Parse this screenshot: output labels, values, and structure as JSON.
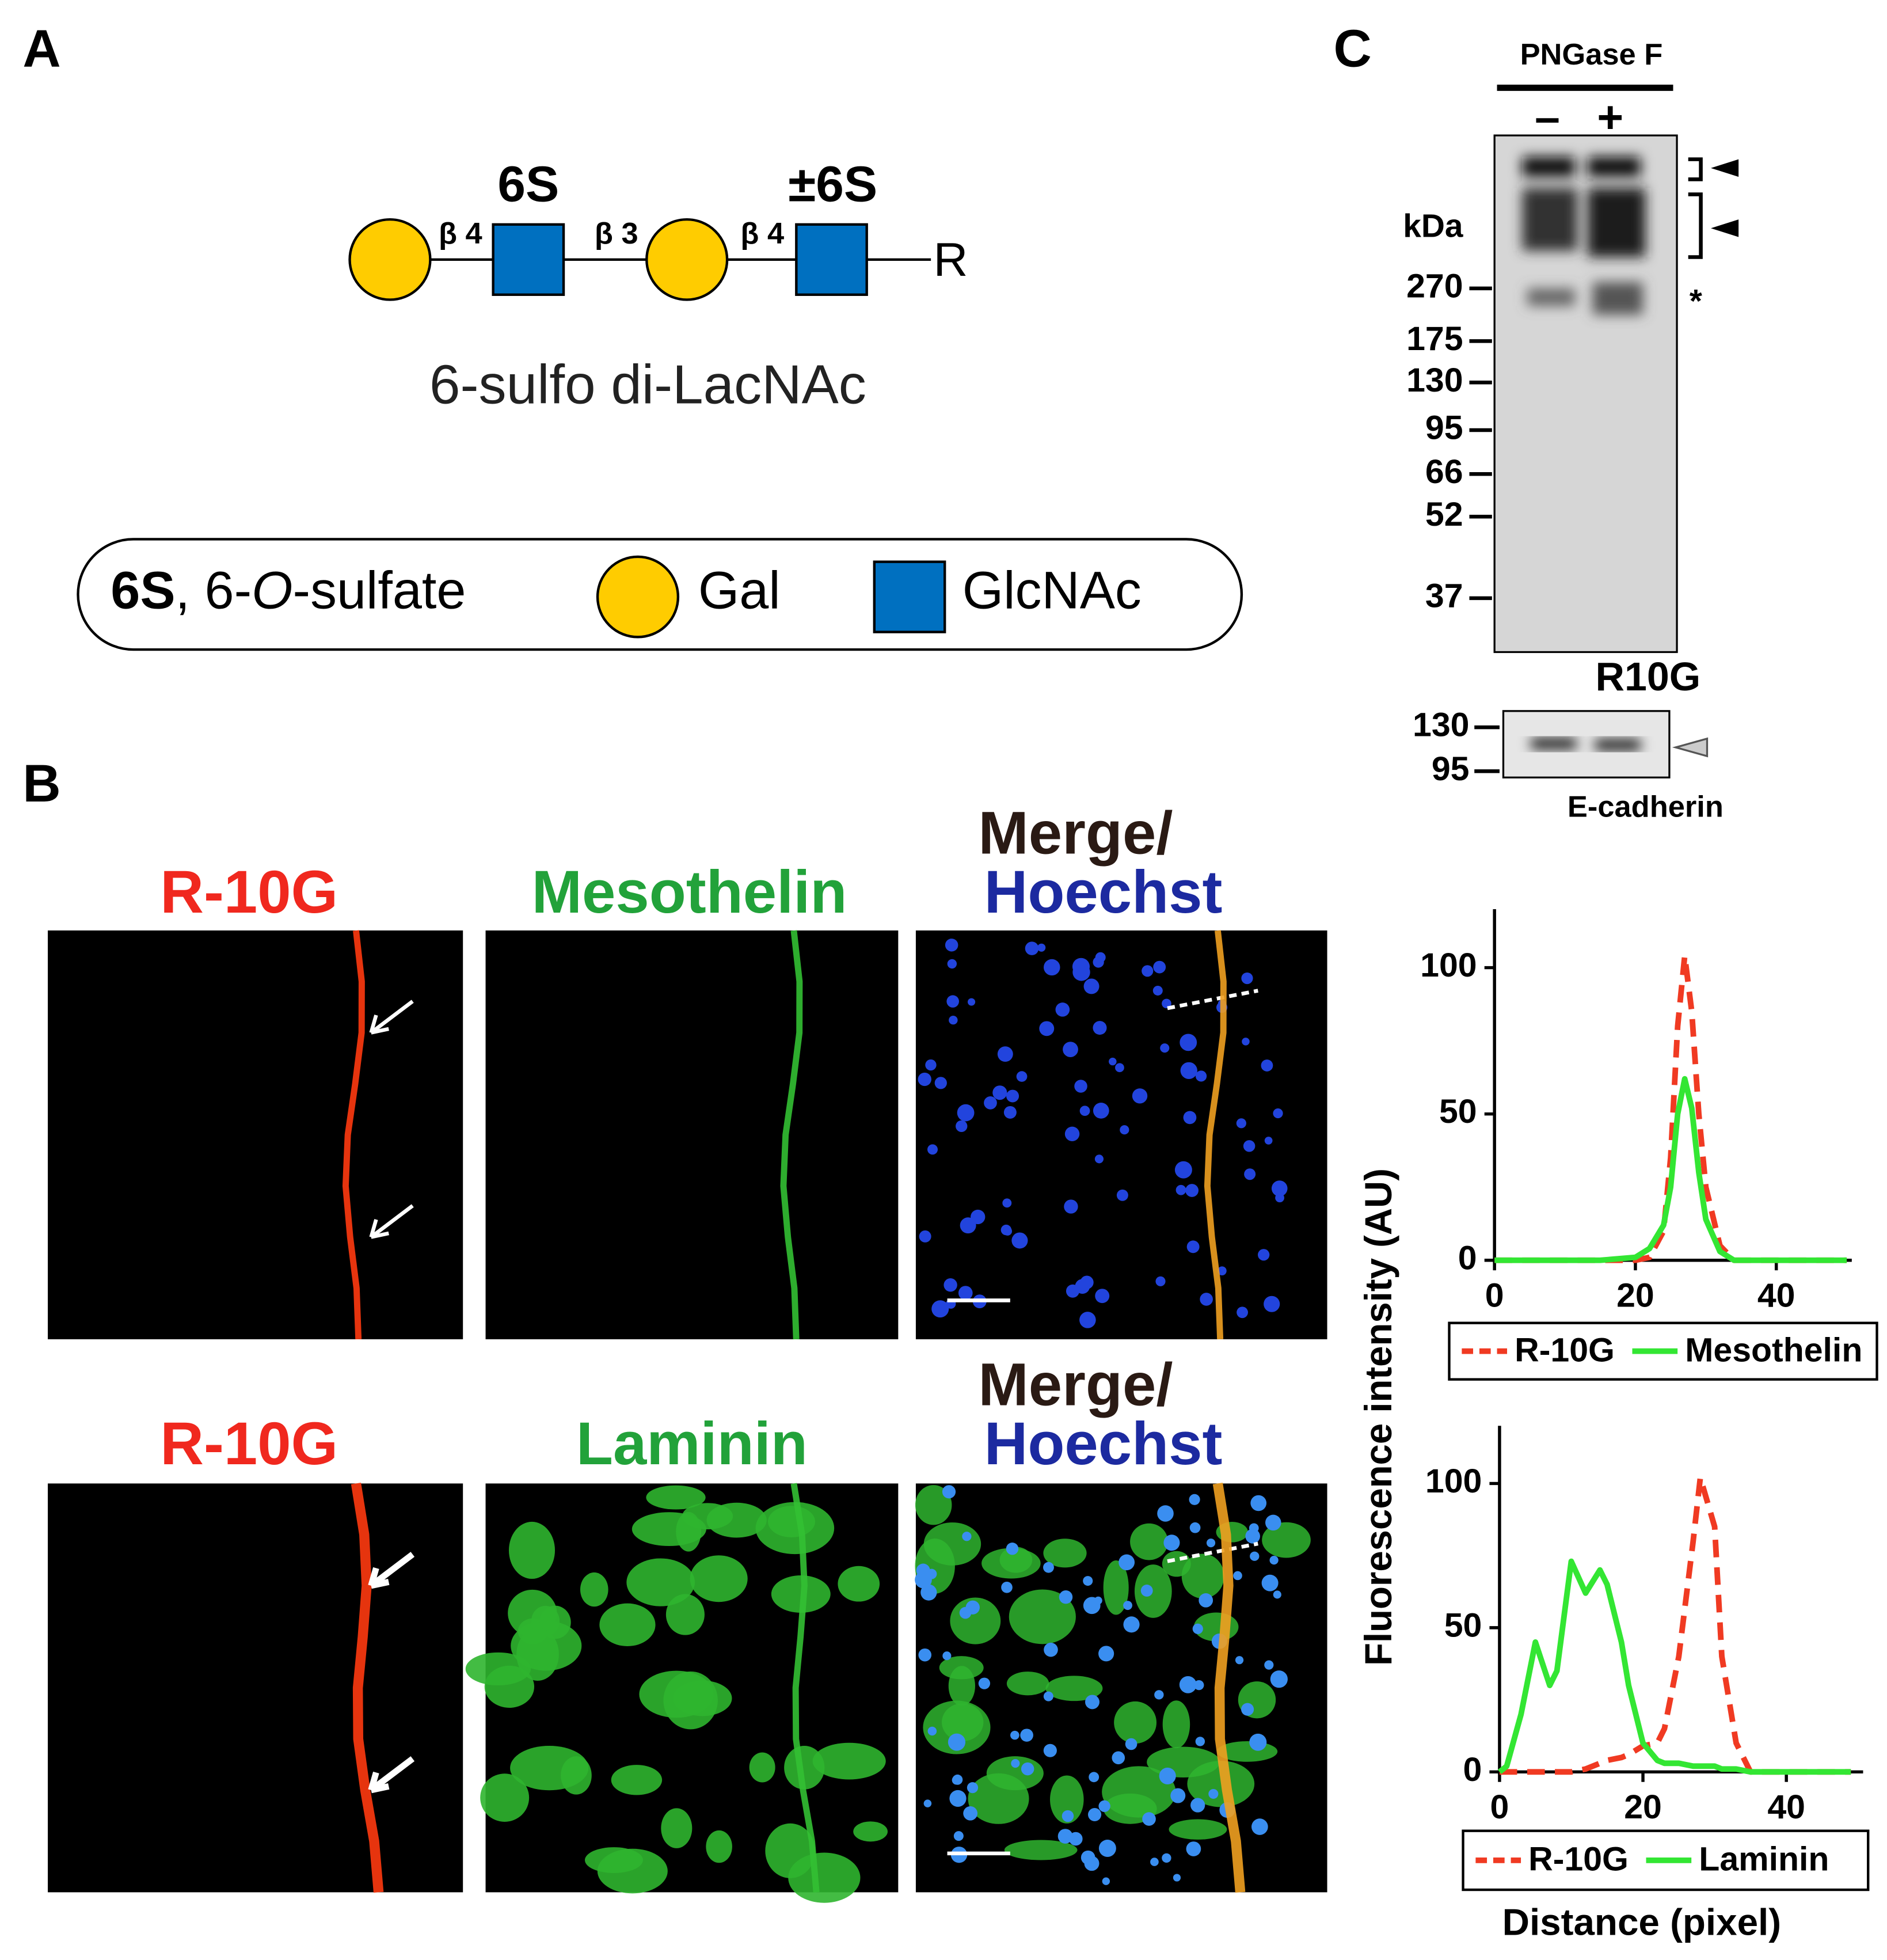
{
  "panel_a": {
    "label": "A",
    "substituents": [
      "6S",
      "±6S"
    ],
    "linkages": [
      "β 4",
      "β 3",
      "β 4"
    ],
    "reducing_end": "R",
    "name": "6-sulfo di-LacNAc",
    "legend": {
      "symbol": "6S",
      "text_pre": ", 6-",
      "text_italic": "O",
      "text_post": "-sulfate",
      "gal": "Gal",
      "glcnac": "GlcNAc"
    }
  },
  "panel_b": {
    "label": "B",
    "rows": [
      {
        "stains": [
          "R-10G",
          "Mesothelin",
          "Merge/",
          "Hoechst"
        ]
      },
      {
        "stains": [
          "R-10G",
          "Laminin",
          "Merge/",
          "Hoechst"
        ]
      }
    ]
  },
  "panel_c": {
    "label": "C",
    "treatment": "PNGase F",
    "lanes": [
      "–",
      "+"
    ],
    "unit": "kDa",
    "markers": [
      "270",
      "175",
      "130",
      "95",
      "66",
      "52",
      "37"
    ],
    "asterisk": "*",
    "antibody": "R10G",
    "control": {
      "markers": [
        "130",
        "95"
      ],
      "antibody": "E-cadherin"
    }
  },
  "chart_data": [
    {
      "type": "line",
      "ylabel": "Fluorescence intensity (AU)",
      "x": [
        0,
        5,
        10,
        15,
        20,
        22,
        24,
        25,
        26,
        27,
        28,
        29,
        30,
        32,
        34,
        40,
        45,
        50
      ],
      "series": [
        {
          "name": "R-10G",
          "color": "#f03a22",
          "dash": true,
          "values": [
            0,
            0,
            0,
            0,
            0,
            1,
            10,
            35,
            80,
            104,
            85,
            50,
            25,
            5,
            0,
            0,
            0,
            0
          ]
        },
        {
          "name": "Mesothelin",
          "color": "#33e633",
          "dash": false,
          "values": [
            0,
            0,
            0,
            0,
            1,
            4,
            12,
            25,
            50,
            62,
            52,
            30,
            14,
            3,
            0,
            0,
            0,
            0
          ]
        }
      ],
      "xlim": [
        0,
        50
      ],
      "ylim": [
        0,
        120
      ],
      "xticks": [
        0,
        20,
        40
      ],
      "yticks": [
        0,
        50,
        100
      ]
    },
    {
      "type": "line",
      "xlabel": "Distance (pixel)",
      "x": [
        0,
        1,
        3,
        5,
        7,
        8,
        10,
        12,
        14,
        15,
        17,
        18,
        20,
        22,
        23,
        25,
        27,
        28,
        30,
        31,
        33,
        35,
        40,
        45,
        49
      ],
      "series": [
        {
          "name": "R-10G",
          "color": "#f03a22",
          "dash": true,
          "values": [
            0,
            0,
            0,
            0,
            0,
            0,
            0,
            1,
            3,
            4,
            5,
            6,
            9,
            10,
            15,
            40,
            80,
            102,
            85,
            40,
            10,
            0,
            0,
            0,
            0
          ]
        },
        {
          "name": "Laminin",
          "color": "#33e633",
          "dash": false,
          "values": [
            0,
            2,
            20,
            45,
            30,
            35,
            73,
            62,
            70,
            65,
            45,
            30,
            10,
            4,
            3,
            3,
            2,
            2,
            2,
            1,
            1,
            0,
            0,
            0,
            0
          ]
        }
      ],
      "xlim": [
        0,
        50
      ],
      "ylim": [
        0,
        120
      ],
      "xticks": [
        0,
        20,
        40
      ],
      "yticks": [
        0,
        50,
        100
      ]
    }
  ]
}
